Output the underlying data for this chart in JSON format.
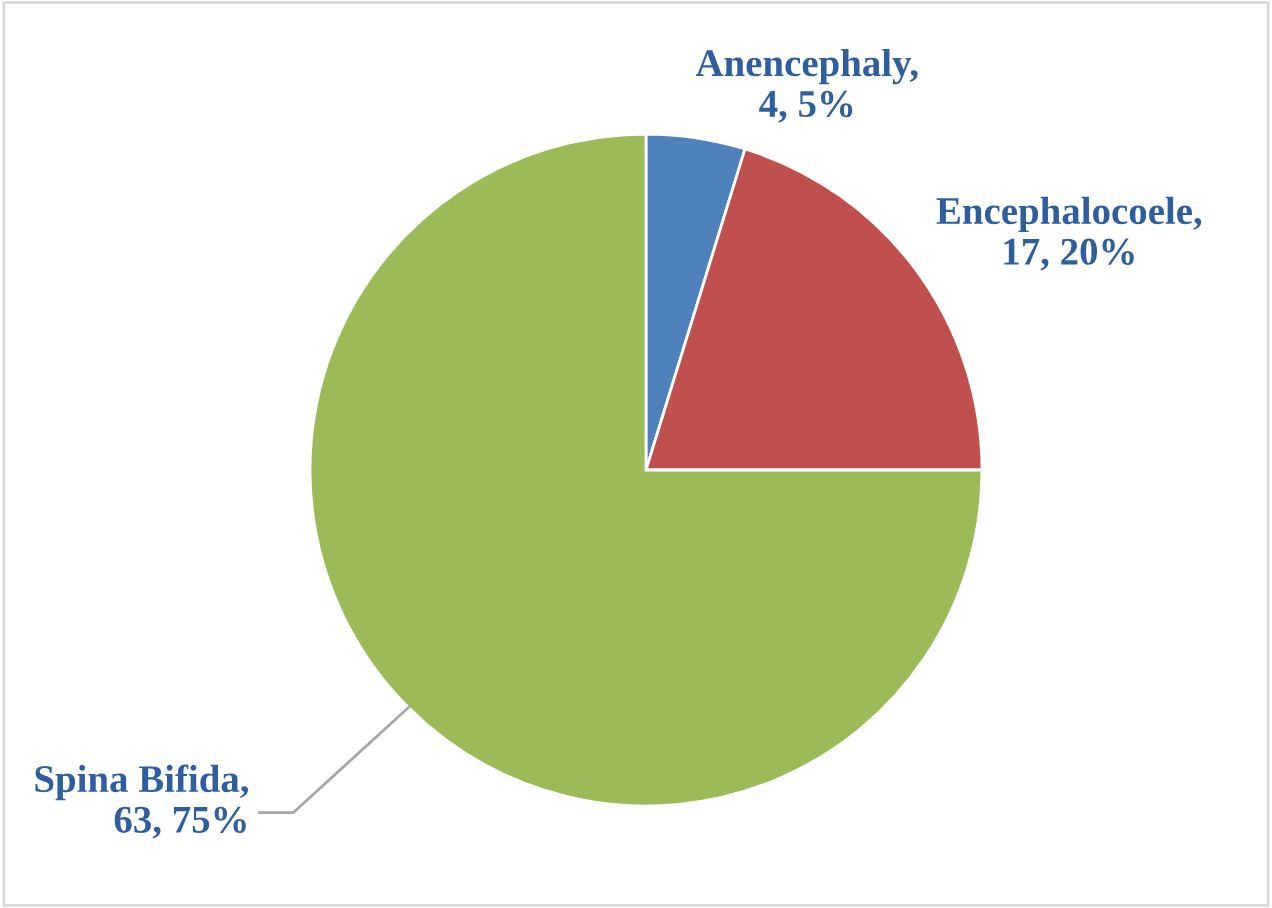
{
  "chart_data": {
    "type": "pie",
    "categories": [
      "Anencephaly",
      "Encephalocoele",
      "Spina Bifida"
    ],
    "values": [
      4,
      17,
      63
    ],
    "value_labels": [
      ", 4, 5%",
      ", 17, 20%",
      ", 63, 75%"
    ],
    "colors": [
      "#4f81bd",
      "#c0504d",
      "#9bbb59"
    ],
    "legend": false
  }
}
